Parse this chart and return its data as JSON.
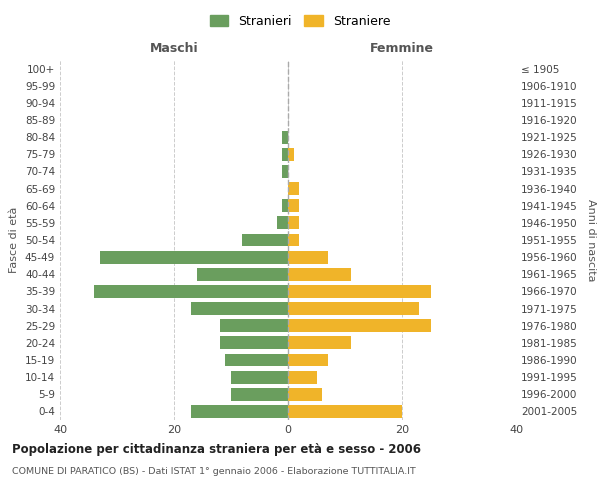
{
  "age_groups": [
    "100+",
    "95-99",
    "90-94",
    "85-89",
    "80-84",
    "75-79",
    "70-74",
    "65-69",
    "60-64",
    "55-59",
    "50-54",
    "45-49",
    "40-44",
    "35-39",
    "30-34",
    "25-29",
    "20-24",
    "15-19",
    "10-14",
    "5-9",
    "0-4"
  ],
  "birth_years": [
    "≤ 1905",
    "1906-1910",
    "1911-1915",
    "1916-1920",
    "1921-1925",
    "1926-1930",
    "1931-1935",
    "1936-1940",
    "1941-1945",
    "1946-1950",
    "1951-1955",
    "1956-1960",
    "1961-1965",
    "1966-1970",
    "1971-1975",
    "1976-1980",
    "1981-1985",
    "1986-1990",
    "1991-1995",
    "1996-2000",
    "2001-2005"
  ],
  "males": [
    0,
    0,
    0,
    0,
    1,
    1,
    1,
    0,
    1,
    2,
    8,
    33,
    16,
    34,
    17,
    12,
    12,
    11,
    10,
    10,
    17
  ],
  "females": [
    0,
    0,
    0,
    0,
    0,
    1,
    0,
    2,
    2,
    2,
    2,
    7,
    11,
    25,
    23,
    25,
    11,
    7,
    5,
    6,
    20
  ],
  "male_color": "#6a9e5e",
  "female_color": "#f0b429",
  "background_color": "#ffffff",
  "grid_color": "#cccccc",
  "title": "Popolazione per cittadinanza straniera per età e sesso - 2006",
  "subtitle": "COMUNE DI PARATICO (BS) - Dati ISTAT 1° gennaio 2006 - Elaborazione TUTTITALIA.IT",
  "xlabel_left": "Maschi",
  "xlabel_right": "Femmine",
  "ylabel_left": "Fasce di età",
  "ylabel_right": "Anni di nascita",
  "legend_male": "Stranieri",
  "legend_female": "Straniere",
  "xlim": 40,
  "bar_height": 0.75
}
